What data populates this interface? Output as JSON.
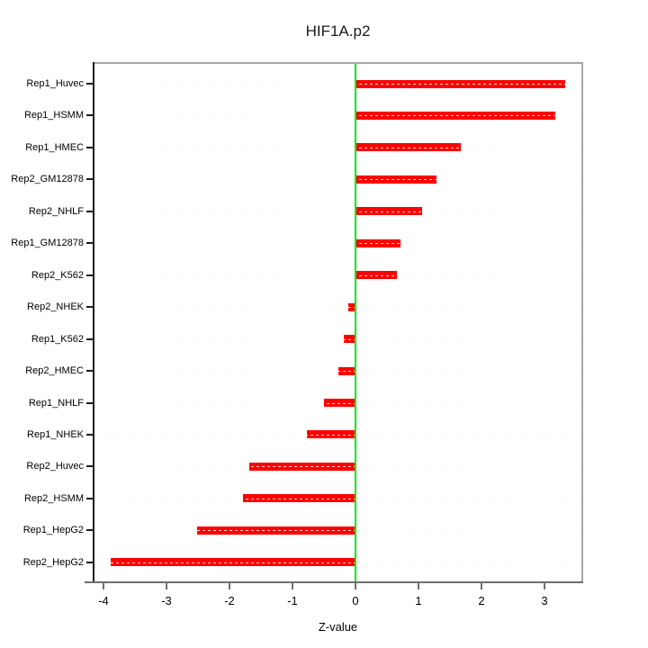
{
  "chart_data": {
    "type": "bar",
    "orientation": "horizontal",
    "title": "HIF1A.p2",
    "xlabel": "Z-value",
    "ylabel": "",
    "categories": [
      "Rep1_Huvec",
      "Rep1_HSMM",
      "Rep1_HMEC",
      "Rep2_GM12878",
      "Rep2_NHLF",
      "Rep1_GM12878",
      "Rep2_K562",
      "Rep2_NHEK",
      "Rep1_K562",
      "Rep2_HMEC",
      "Rep1_NHLF",
      "Rep1_NHEK",
      "Rep2_Huvec",
      "Rep2_HSMM",
      "Rep1_HepG2",
      "Rep2_HepG2"
    ],
    "values": [
      3.33,
      3.17,
      1.67,
      1.29,
      1.06,
      0.71,
      0.66,
      -0.12,
      -0.19,
      -0.27,
      -0.5,
      -0.77,
      -1.69,
      -1.79,
      -2.51,
      -3.89
    ],
    "xticks": [
      -4,
      -3,
      -2,
      -1,
      0,
      1,
      2,
      3
    ],
    "xlim": [
      -4.16,
      3.6
    ],
    "grid": true,
    "legend": "none",
    "zero_reference_line": 0,
    "colors": {
      "bar": "#fe0000",
      "zero_line": "#00e80b",
      "grid": "#d8d8d8",
      "frame": "#a8a8a8",
      "y_axis": "#1c1c1c",
      "x_axis": "#6e6e6e",
      "text": "#000000"
    }
  }
}
